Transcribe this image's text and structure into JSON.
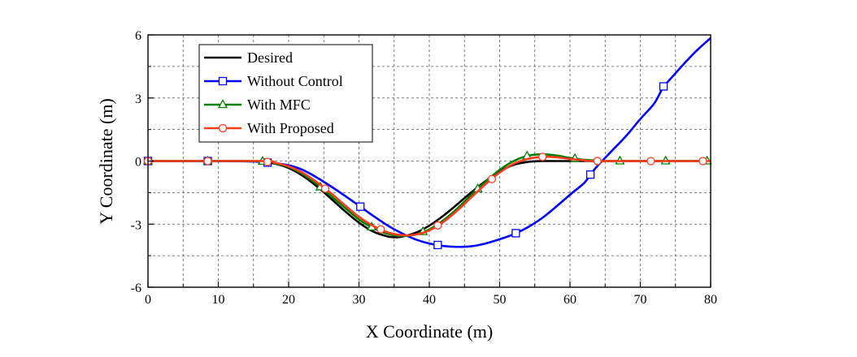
{
  "chart_data": {
    "type": "line",
    "title": "",
    "xlabel": "X Coordinate (m)",
    "ylabel": "Y Coordinate (m)",
    "xlim": [
      0,
      80
    ],
    "ylim": [
      -6,
      6
    ],
    "xticks": [
      "0",
      "10",
      "20",
      "30",
      "40",
      "50",
      "60",
      "70",
      "80"
    ],
    "yticks": [
      "-6",
      "-3",
      "0",
      "3",
      "6"
    ],
    "grid": true,
    "legend_position": "top-left",
    "series": [
      {
        "name": "Desired",
        "color": "#000000",
        "marker": "none",
        "x": [
          0,
          14,
          16,
          18,
          20,
          22,
          24,
          26,
          28,
          30,
          32,
          34,
          35,
          36,
          38,
          40,
          42,
          44,
          46,
          48,
          50,
          52,
          54,
          56,
          58,
          80
        ],
        "y": [
          0,
          0,
          -0.03,
          -0.12,
          -0.33,
          -0.7,
          -1.2,
          -1.78,
          -2.38,
          -2.93,
          -3.35,
          -3.58,
          -3.62,
          -3.6,
          -3.42,
          -3.07,
          -2.6,
          -2.05,
          -1.48,
          -0.95,
          -0.5,
          -0.18,
          -0.04,
          0,
          0,
          0
        ]
      },
      {
        "name": "Without Control",
        "color": "#0000ff",
        "marker": "square",
        "x": [
          0,
          10,
          15,
          18,
          20,
          22,
          24,
          26,
          28,
          30,
          32,
          34,
          36,
          38,
          40,
          42,
          44,
          46,
          48,
          50,
          52,
          54,
          56,
          58,
          60,
          62,
          63,
          64,
          66,
          68,
          70,
          72,
          73.3,
          74,
          76,
          78,
          80
        ],
        "y": [
          0,
          0,
          -0.02,
          -0.1,
          -0.2,
          -0.42,
          -0.78,
          -1.2,
          -1.65,
          -2.12,
          -2.6,
          -3.05,
          -3.42,
          -3.72,
          -3.92,
          -4.04,
          -4.08,
          -4.05,
          -3.92,
          -3.72,
          -3.48,
          -3.15,
          -2.72,
          -2.18,
          -1.6,
          -1.05,
          -0.6,
          -0.2,
          0.5,
          1.2,
          2.0,
          2.75,
          3.55,
          3.8,
          4.55,
          5.25,
          5.85
        ],
        "marker_x": [
          0,
          8.5,
          17,
          30.2,
          41.2,
          52.3,
          62.9,
          73.3
        ]
      },
      {
        "name": "With MFC",
        "color": "#008000",
        "marker": "triangle",
        "x": [
          0,
          16,
          18,
          20,
          22,
          24,
          26,
          28,
          30,
          32,
          34,
          36,
          38,
          40,
          42,
          44,
          46,
          48,
          50,
          52,
          54,
          56,
          58,
          60,
          62,
          64,
          66,
          80
        ],
        "y": [
          0,
          0,
          -0.1,
          -0.28,
          -0.62,
          -1.1,
          -1.65,
          -2.22,
          -2.78,
          -3.18,
          -3.45,
          -3.56,
          -3.5,
          -3.25,
          -2.82,
          -2.25,
          -1.6,
          -0.98,
          -0.42,
          0,
          0.25,
          0.32,
          0.27,
          0.15,
          0.06,
          0.02,
          0,
          0
        ],
        "marker_x": [
          0,
          8.5,
          16.3,
          24.5,
          31.8,
          39.1,
          46.9,
          53.9,
          60.7,
          67.1,
          73.6,
          79.5
        ]
      },
      {
        "name": "With Proposed",
        "color": "#ff3b1f",
        "marker": "circle",
        "x": [
          0,
          16,
          18,
          20,
          22,
          24,
          26,
          28,
          30,
          32,
          34,
          36,
          38,
          40,
          42,
          44,
          46,
          48,
          50,
          52,
          54,
          56,
          58,
          60,
          62,
          64,
          80
        ],
        "y": [
          0,
          0,
          -0.08,
          -0.25,
          -0.56,
          -1.0,
          -1.52,
          -2.1,
          -2.65,
          -3.08,
          -3.38,
          -3.52,
          -3.5,
          -3.3,
          -2.9,
          -2.35,
          -1.72,
          -1.1,
          -0.55,
          -0.13,
          0.1,
          0.2,
          0.18,
          0.1,
          0.04,
          0,
          0
        ],
        "marker_x": [
          0,
          8.5,
          17,
          25.2,
          33.1,
          41.2,
          48.9,
          56.1,
          63.9,
          71.5,
          78.9
        ]
      }
    ]
  }
}
